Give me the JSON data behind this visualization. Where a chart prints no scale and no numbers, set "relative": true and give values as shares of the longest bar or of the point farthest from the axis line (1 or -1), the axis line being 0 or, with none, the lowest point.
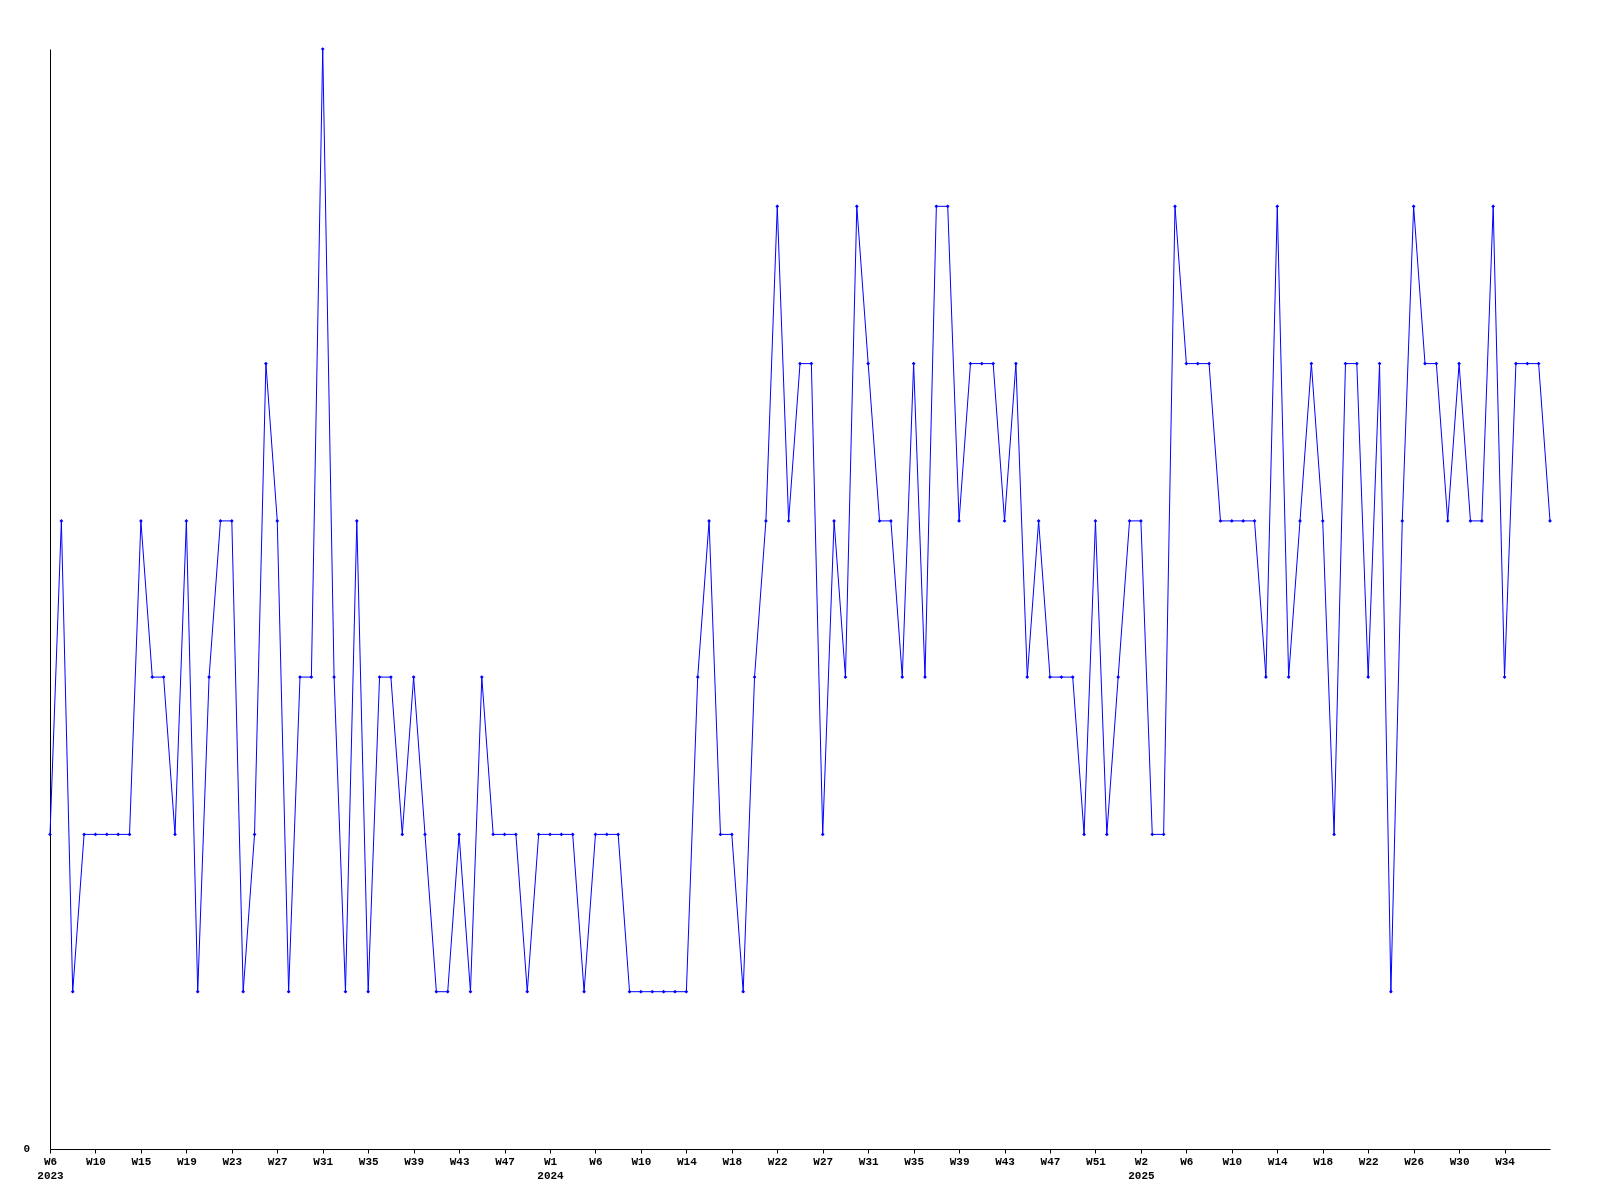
{
  "chart_data": {
    "type": "line",
    "relative": true,
    "marker": "diamond",
    "line_style": "solid",
    "annotations": [
      "0"
    ],
    "categories": [
      "W6\n2023",
      null,
      null,
      null,
      "W10",
      null,
      null,
      null,
      "W15",
      null,
      null,
      null,
      "W19",
      null,
      null,
      null,
      "W23",
      null,
      null,
      null,
      "W27",
      null,
      null,
      null,
      "W31",
      null,
      null,
      null,
      "W35",
      null,
      null,
      null,
      "W39",
      null,
      null,
      null,
      "W43",
      null,
      null,
      null,
      "W47",
      null,
      null,
      null,
      "W1\n2024",
      null,
      null,
      null,
      "W6",
      null,
      null,
      null,
      "W10",
      null,
      null,
      null,
      "W14",
      null,
      null,
      null,
      "W18",
      null,
      null,
      null,
      "W22",
      null,
      null,
      null,
      "W27",
      null,
      null,
      null,
      "W31",
      null,
      null,
      null,
      "W35",
      null,
      null,
      null,
      "W39",
      null,
      null,
      null,
      "W43",
      null,
      null,
      null,
      "W47",
      null,
      null,
      null,
      "W51",
      null,
      null,
      null,
      "W2\n2025",
      null,
      null,
      null,
      "W6",
      null,
      null,
      null,
      "W10",
      null,
      null,
      null,
      "W14",
      null,
      null,
      null,
      "W18",
      null,
      null,
      null,
      "W22",
      null,
      null,
      null,
      "W26",
      null,
      null,
      null,
      "W30",
      null,
      null,
      null,
      "W34",
      null,
      null,
      null,
      null
    ],
    "series": [
      {
        "color": "#0000ff",
        "values": [
          0.286,
          0.571,
          0.143,
          0.286,
          0.286,
          0.286,
          0.286,
          0.286,
          0.571,
          0.429,
          0.429,
          0.286,
          0.571,
          0.143,
          0.429,
          0.571,
          0.571,
          0.143,
          0.286,
          0.714,
          0.571,
          0.143,
          0.429,
          0.429,
          1,
          0.429,
          0.143,
          0.571,
          0.143,
          0.429,
          0.429,
          0.286,
          0.429,
          0.286,
          0.143,
          0.143,
          0.286,
          0.143,
          0.429,
          0.286,
          0.286,
          0.286,
          0.143,
          0.286,
          0.286,
          0.286,
          0.286,
          0.143,
          0.286,
          0.286,
          0.286,
          0.143,
          0.143,
          0.143,
          0.143,
          0.143,
          0.143,
          0.429,
          0.571,
          0.286,
          0.286,
          0.143,
          0.429,
          0.571,
          0.857,
          0.571,
          0.714,
          0.714,
          0.286,
          0.571,
          0.429,
          0.857,
          0.714,
          0.571,
          0.571,
          0.429,
          0.714,
          0.429,
          0.857,
          0.857,
          0.571,
          0.714,
          0.714,
          0.714,
          0.571,
          0.714,
          0.429,
          0.571,
          0.429,
          0.429,
          0.429,
          0.286,
          0.571,
          0.286,
          0.429,
          0.571,
          0.571,
          0.286,
          0.286,
          0.857,
          0.714,
          0.714,
          0.714,
          0.571,
          0.571,
          0.571,
          0.571,
          0.429,
          0.857,
          0.429,
          0.571,
          0.714,
          0.571,
          0.286,
          0.714,
          0.714,
          0.429,
          0.714,
          0.143,
          0.571,
          0.857,
          0.714,
          0.714,
          0.571,
          0.714,
          0.571,
          0.571,
          0.857,
          0.429,
          0.714,
          0.714,
          0.714,
          0.571
        ]
      }
    ]
  }
}
